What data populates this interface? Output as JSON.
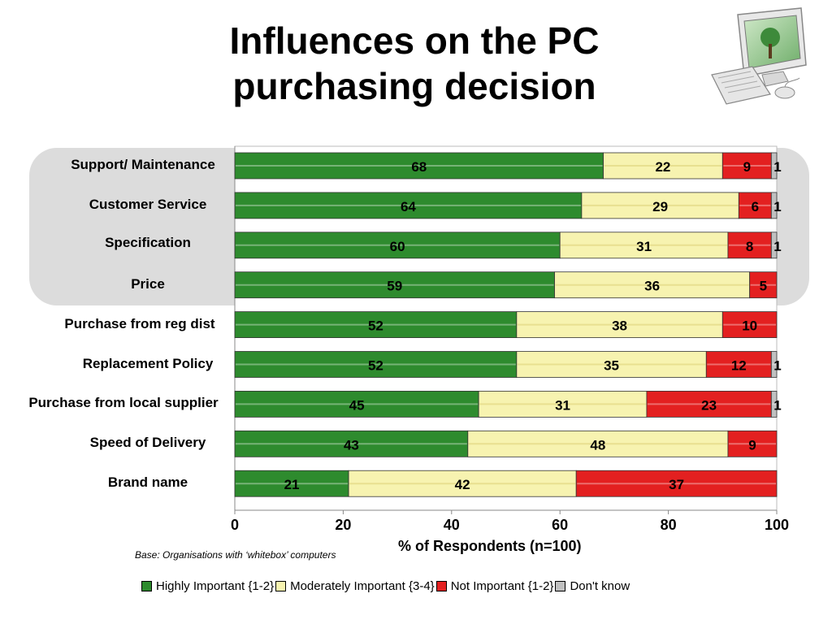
{
  "title_line1": "Influences on the PC",
  "title_line2": "purchasing decision",
  "colors": {
    "highly": "#2e8b2e",
    "moderately": "#f7f3b0",
    "not": "#e32020",
    "dont_know": "#c0c0c0",
    "panel": "#dcdcdc"
  },
  "chart_data": {
    "type": "bar",
    "orientation": "horizontal",
    "stacked": true,
    "categories": [
      "Support/ Maintenance",
      "Customer Service",
      "Specification",
      "Price",
      "Purchase from reg dist",
      "Replacement Policy",
      "Purchase from local supplier",
      "Speed of Delivery",
      "Brand name"
    ],
    "series": [
      {
        "name": "Highly Important {1-2}",
        "values": [
          68,
          64,
          60,
          59,
          52,
          52,
          45,
          43,
          21
        ]
      },
      {
        "name": "Moderately Important {3-4}",
        "values": [
          22,
          29,
          31,
          36,
          38,
          35,
          31,
          48,
          42
        ]
      },
      {
        "name": "Not Important {1-2}",
        "values": [
          9,
          6,
          8,
          5,
          10,
          12,
          23,
          9,
          37
        ]
      },
      {
        "name": "Don't know",
        "values": [
          1,
          1,
          1,
          0,
          0,
          1,
          1,
          0,
          0
        ]
      }
    ],
    "xlabel": "% of Respondents (n=100)",
    "xlim": [
      0,
      100
    ],
    "xticks": [
      "0",
      "20",
      "40",
      "60",
      "80",
      "100"
    ],
    "legend_position": "bottom",
    "grid": false
  },
  "note": "Base:  Organisations with ‘whitebox’ computers",
  "legend": [
    {
      "label": "Highly Important {1-2}",
      "color": "#2e8b2e"
    },
    {
      "label": "Moderately Important {3-4}",
      "color": "#f7f3b0"
    },
    {
      "label": "Not Important {1-2}",
      "color": "#e32020"
    },
    {
      "label": "Don't know",
      "color": "#c0c0c0"
    }
  ],
  "illustration": {
    "icon": "desktop-computer-icon"
  }
}
